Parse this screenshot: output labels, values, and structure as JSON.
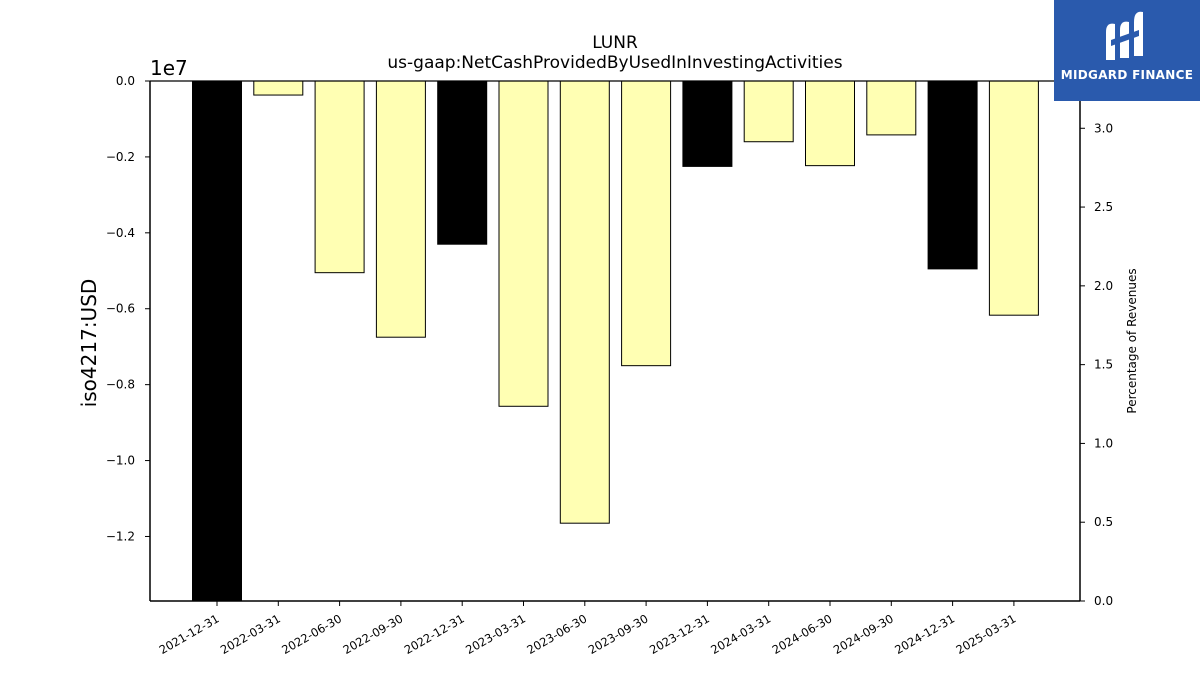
{
  "chart_data": {
    "type": "bar",
    "title": "LUNR",
    "subtitle": "us-gaap:NetCashProvidedByUsedInInvestingActivities",
    "ylabel": "iso4217:USD",
    "y_offset_label": "1e7",
    "ylim": [
      -13700000,
      0
    ],
    "y_ticks": [
      0,
      -2000000,
      -4000000,
      -6000000,
      -8000000,
      -10000000,
      -12000000
    ],
    "y_tick_labels": [
      "0.0",
      "−0.2",
      "−0.4",
      "−0.6",
      "−0.8",
      "−1.0",
      "−1.2"
    ],
    "y2label": "Percentage of Revenues",
    "y2lim": [
      0,
      3.3
    ],
    "y2_ticks": [
      0,
      0.5,
      1.0,
      1.5,
      2.0,
      2.5,
      3.0
    ],
    "y2_tick_labels": [
      "0.0",
      "0.5",
      "1.0",
      "1.5",
      "2.0",
      "2.5",
      "3.0"
    ],
    "categories": [
      "2021-12-31",
      "2022-03-31",
      "2022-06-30",
      "2022-09-30",
      "2022-12-31",
      "2023-03-31",
      "2023-06-30",
      "2023-09-30",
      "2023-12-31",
      "2024-03-31",
      "2024-06-30",
      "2024-09-30",
      "2024-12-31",
      "2025-03-31"
    ],
    "values": [
      -13700000,
      -370000,
      -5050000,
      -6750000,
      -4300000,
      -8570000,
      -11650000,
      -7500000,
      -2250000,
      -1600000,
      -2230000,
      -1420000,
      -4950000,
      -6170000
    ],
    "bar_colors": [
      "#000000",
      "#ffffb3",
      "#ffffb3",
      "#ffffb3",
      "#000000",
      "#ffffb3",
      "#ffffb3",
      "#ffffb3",
      "#000000",
      "#ffffb3",
      "#ffffb3",
      "#ffffb3",
      "#000000",
      "#ffffb3"
    ],
    "grid": false,
    "legend": "none"
  },
  "logo": {
    "text": "MIDGARD FINANCE",
    "color": "#2a5aad"
  }
}
